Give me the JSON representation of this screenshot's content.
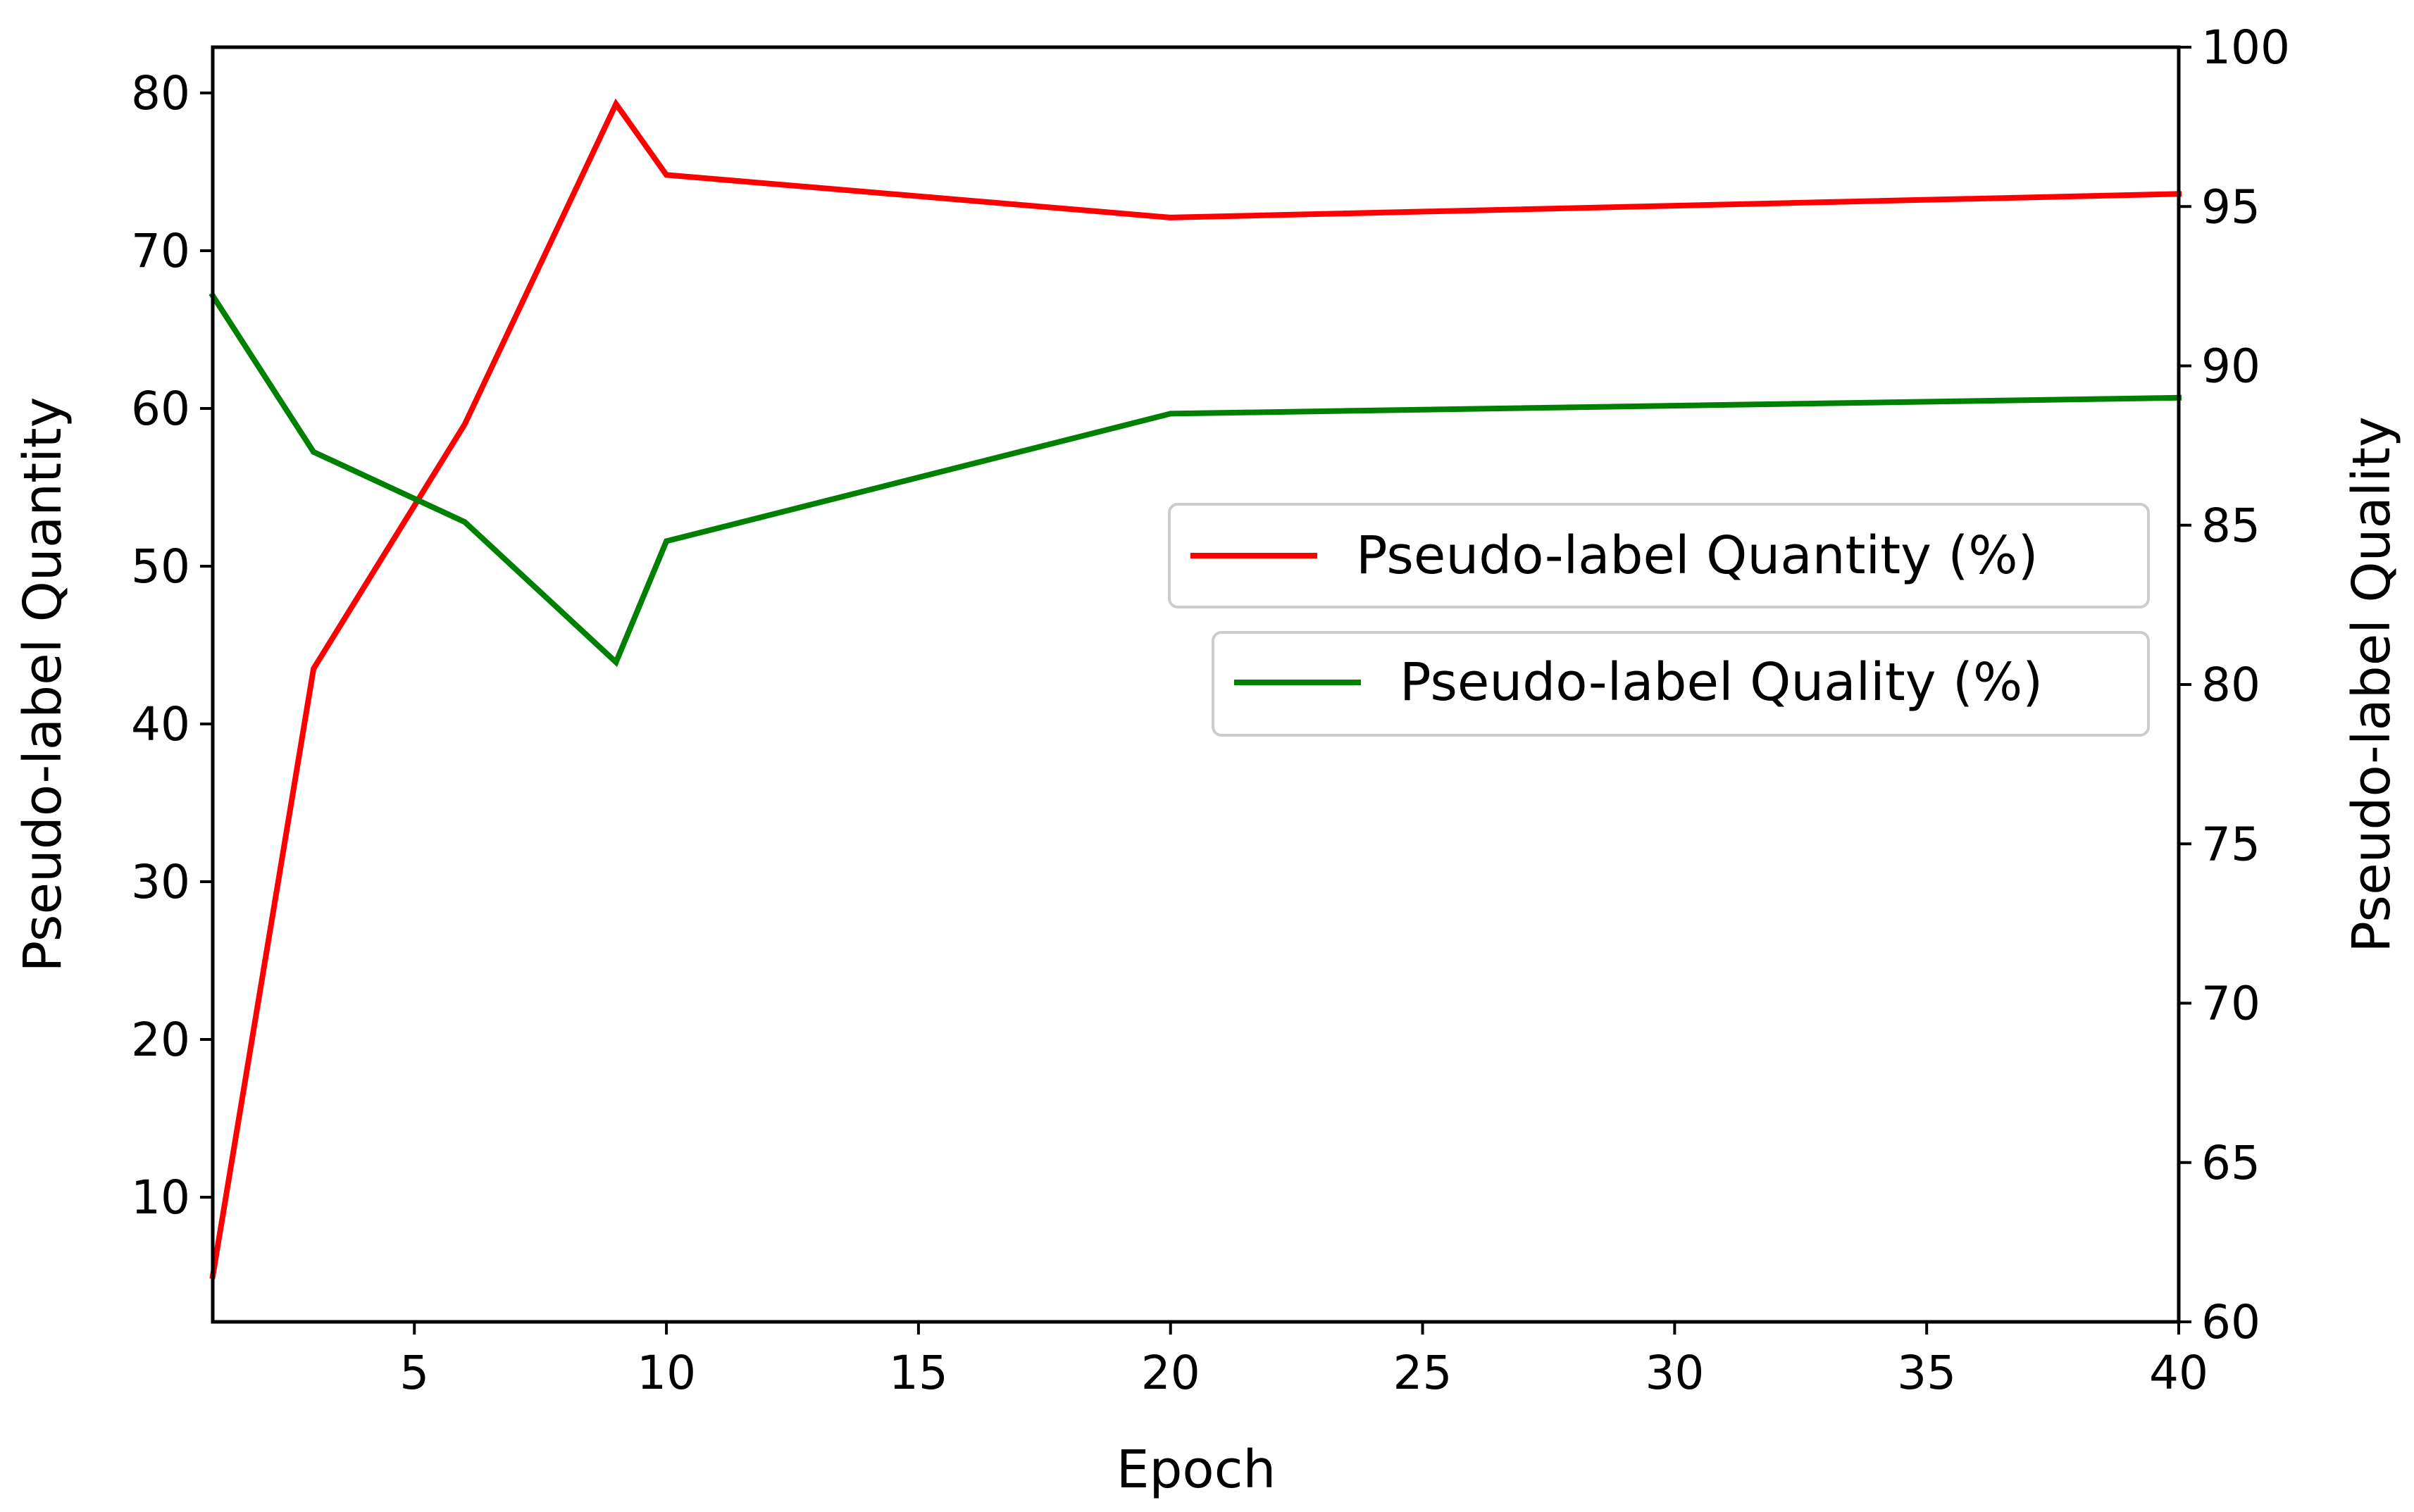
{
  "chart_data": {
    "type": "line",
    "title": "",
    "xlabel": "Epoch",
    "ylabel_left": "Pseudo-label Quantity",
    "ylabel_right": "Pseudo-label Quality",
    "x": [
      1,
      3,
      6,
      9,
      10,
      20,
      40
    ],
    "xlim": [
      1,
      40
    ],
    "xticks": [
      5,
      10,
      15,
      20,
      25,
      30,
      35,
      40
    ],
    "ylim_left": [
      2.1,
      82.9
    ],
    "ylim_right": [
      60,
      100
    ],
    "yticks_left": [
      10,
      20,
      30,
      40,
      50,
      60,
      70,
      80
    ],
    "yticks_right": [
      60,
      65,
      70,
      75,
      80,
      85,
      90,
      95,
      100
    ],
    "grid": false,
    "legend_placement": "center-right",
    "series": [
      {
        "name": "Pseudo-label Quantity (%)",
        "axis": "left",
        "color": "#ff0000",
        "values": [
          5.0,
          43.5,
          59.0,
          79.3,
          74.8,
          72.1,
          73.6
        ]
      },
      {
        "name": "Pseudo-label Quality (%)",
        "axis": "right",
        "color": "#008000",
        "values": [
          92.2,
          87.3,
          85.1,
          80.7,
          84.5,
          88.5,
          89.0
        ]
      }
    ]
  }
}
